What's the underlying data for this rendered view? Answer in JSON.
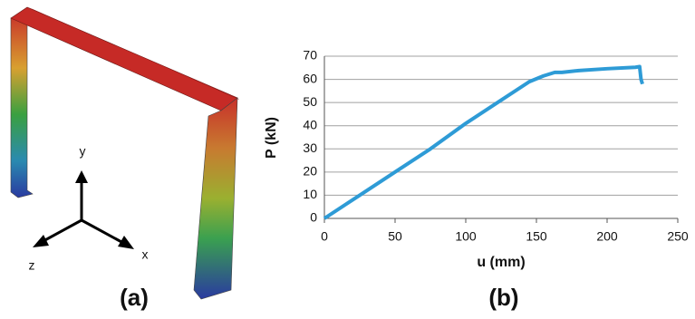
{
  "panels": {
    "a": {
      "label": "(a)",
      "axis_labels": {
        "y": "y",
        "z": "z",
        "x": "x"
      }
    },
    "b": {
      "label": "(b)"
    }
  },
  "chart_data": {
    "type": "line",
    "xlabel": "u (mm)",
    "ylabel": "P (kN)",
    "x": [
      0,
      25,
      50,
      75,
      100,
      125,
      145,
      155,
      163,
      168,
      180,
      200,
      220,
      223,
      224,
      225
    ],
    "series": [
      {
        "color": "#2e9bd6",
        "values": [
          0,
          10,
          20,
          30,
          41,
          51,
          59,
          61.5,
          63,
          63,
          63.8,
          64.6,
          65.2,
          65.5,
          60,
          58
        ]
      }
    ],
    "xlim": [
      0,
      250
    ],
    "ylim": [
      0,
      70
    ],
    "xticks": [
      0,
      50,
      100,
      150,
      200,
      250
    ],
    "yticks": [
      0,
      10,
      20,
      30,
      40,
      50,
      60,
      70
    ],
    "grid": true
  }
}
